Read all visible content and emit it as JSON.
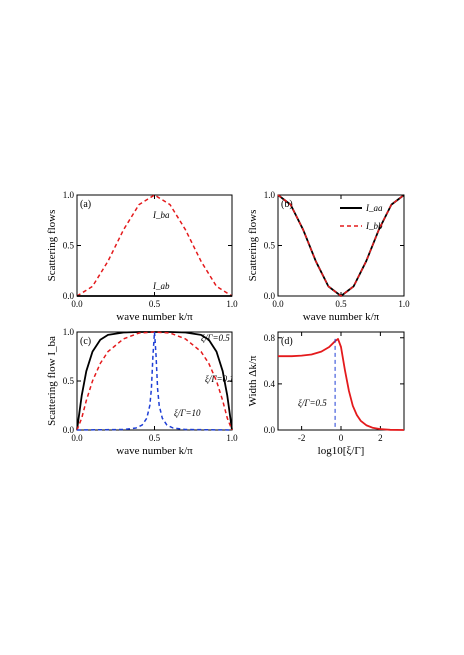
{
  "chart_data": [
    {
      "panel": "(a)",
      "type": "line",
      "xlabel": "wave number k/π",
      "ylabel": "Scattering flows",
      "xlim": [
        0,
        1
      ],
      "ylim": [
        0,
        1
      ],
      "xticks": [
        "0.0",
        "0.5",
        "1.0"
      ],
      "yticks": [
        "0.0",
        "0.5",
        "1.0"
      ],
      "series": [
        {
          "name": "I_ba",
          "color": "#e41a1c",
          "style": "dashed",
          "x": [
            0,
            0.1,
            0.2,
            0.3,
            0.4,
            0.5,
            0.6,
            0.7,
            0.8,
            0.9,
            1.0
          ],
          "y": [
            0,
            0.095,
            0.345,
            0.655,
            0.905,
            1.0,
            0.905,
            0.655,
            0.345,
            0.095,
            0
          ]
        },
        {
          "name": "I_ab",
          "color": "#000000",
          "style": "solid",
          "x": [
            0,
            1.0
          ],
          "y": [
            0,
            0
          ]
        }
      ]
    },
    {
      "panel": "(b)",
      "type": "line",
      "xlabel": "wave number k/π",
      "ylabel": "Scattering flows",
      "xlim": [
        0,
        1
      ],
      "ylim": [
        0,
        1
      ],
      "xticks": [
        "0.0",
        "0.5",
        "1.0"
      ],
      "yticks": [
        "0.0",
        "0.5",
        "1.0"
      ],
      "legend": "top-right",
      "series": [
        {
          "name": "I_aa",
          "color": "#000000",
          "style": "solid",
          "x": [
            0,
            0.1,
            0.2,
            0.3,
            0.4,
            0.5,
            0.6,
            0.7,
            0.8,
            0.9,
            1.0
          ],
          "y": [
            1.0,
            0.905,
            0.655,
            0.345,
            0.095,
            0,
            0.095,
            0.345,
            0.655,
            0.905,
            1.0
          ]
        },
        {
          "name": "I_bb",
          "color": "#e41a1c",
          "style": "dashed",
          "x": [
            0,
            0.1,
            0.2,
            0.3,
            0.4,
            0.5,
            0.6,
            0.7,
            0.8,
            0.9,
            1.0
          ],
          "y": [
            1.0,
            0.905,
            0.655,
            0.345,
            0.095,
            0,
            0.095,
            0.345,
            0.655,
            0.905,
            1.0
          ]
        }
      ]
    },
    {
      "panel": "(c)",
      "type": "line",
      "xlabel": "wave number k/π",
      "ylabel": "Scattering flow I_ba",
      "xlim": [
        0,
        1
      ],
      "ylim": [
        0,
        1
      ],
      "xticks": [
        "0.0",
        "0.5",
        "1.0"
      ],
      "yticks": [
        "0.0",
        "0.5",
        "1.0"
      ],
      "series": [
        {
          "name": "ξ/Γ=0.5",
          "color": "#000000",
          "style": "solid",
          "x": [
            0,
            0.03,
            0.06,
            0.1,
            0.15,
            0.2,
            0.3,
            0.4,
            0.5,
            0.6,
            0.7,
            0.8,
            0.85,
            0.9,
            0.94,
            0.97,
            1.0
          ],
          "y": [
            0,
            0.35,
            0.6,
            0.8,
            0.92,
            0.97,
            0.995,
            1.0,
            1.0,
            1.0,
            0.995,
            0.97,
            0.92,
            0.8,
            0.6,
            0.35,
            0
          ]
        },
        {
          "name": "ξ/Γ=0.1",
          "color": "#e41a1c",
          "style": "dashed",
          "x": [
            0,
            0.03,
            0.06,
            0.1,
            0.15,
            0.2,
            0.3,
            0.4,
            0.5,
            0.6,
            0.7,
            0.8,
            0.85,
            0.9,
            0.94,
            0.97,
            1.0
          ],
          "y": [
            0,
            0.12,
            0.3,
            0.5,
            0.68,
            0.8,
            0.93,
            0.99,
            1.0,
            0.99,
            0.93,
            0.8,
            0.68,
            0.5,
            0.3,
            0.12,
            0
          ]
        },
        {
          "name": "ξ/Γ=10",
          "color": "#1f3fd6",
          "style": "dashed",
          "x": [
            0,
            0.3,
            0.38,
            0.42,
            0.45,
            0.47,
            0.48,
            0.49,
            0.5,
            0.51,
            0.52,
            0.53,
            0.55,
            0.58,
            0.62,
            0.7,
            1.0
          ],
          "y": [
            0,
            0.005,
            0.02,
            0.05,
            0.12,
            0.25,
            0.42,
            0.75,
            1.0,
            0.75,
            0.42,
            0.25,
            0.12,
            0.05,
            0.02,
            0.005,
            0
          ]
        }
      ],
      "annotations": [
        "ξ/Γ=0.5",
        "ξ/Γ=0.1",
        "ξ/Γ=10"
      ]
    },
    {
      "panel": "(d)",
      "type": "line",
      "xlabel": "log10[ξ/Γ]",
      "ylabel": "Width Δk/π",
      "xlim": [
        -3.2,
        3.2
      ],
      "ylim": [
        0,
        0.85
      ],
      "xticks": [
        "-2",
        "0",
        "2"
      ],
      "yticks": [
        "0.0",
        "0.4",
        "0.8"
      ],
      "series": [
        {
          "name": "width",
          "color": "#e41a1c",
          "style": "solid",
          "x": [
            -3.2,
            -2.5,
            -2.0,
            -1.5,
            -1.0,
            -0.6,
            -0.3,
            -0.15,
            0.0,
            0.2,
            0.4,
            0.6,
            0.8,
            1.0,
            1.3,
            1.6,
            2.0,
            2.5,
            3.2
          ],
          "y": [
            0.64,
            0.64,
            0.645,
            0.655,
            0.68,
            0.72,
            0.77,
            0.79,
            0.72,
            0.52,
            0.34,
            0.21,
            0.13,
            0.08,
            0.04,
            0.02,
            0.008,
            0.002,
            0
          ]
        }
      ],
      "marker": {
        "x": -0.3,
        "label": "ξ/Γ=0.5",
        "color": "#1f3fd6"
      }
    }
  ]
}
